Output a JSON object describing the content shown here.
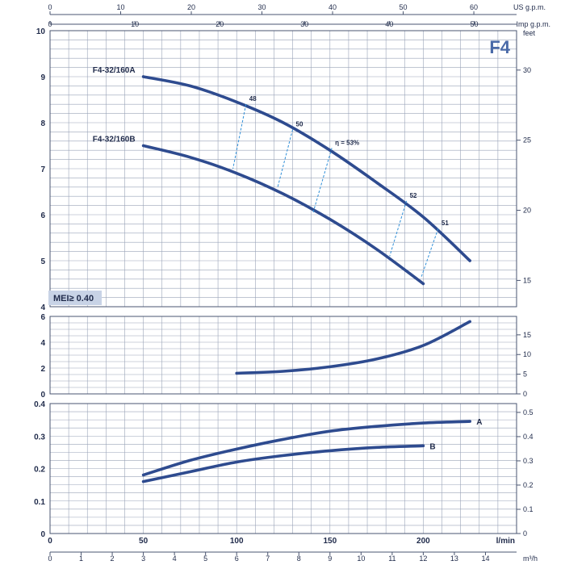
{
  "model_tag": "F4",
  "mei_label": "MEI≥ 0.40",
  "chart_data": [
    {
      "type": "line",
      "id": "head",
      "ylim": [
        4,
        10
      ],
      "yticks": [
        4,
        5,
        6,
        7,
        8,
        9,
        10
      ],
      "right_axis": {
        "unit": "feet",
        "ticks": [
          15,
          20,
          25,
          30
        ]
      },
      "x_unit": "l/min",
      "series": [
        {
          "name": "F4-32/160A",
          "x": [
            50,
            75,
            100,
            125,
            150,
            175,
            200,
            225
          ],
          "y": [
            9.0,
            8.8,
            8.45,
            8.0,
            7.4,
            6.7,
            5.95,
            5.0
          ]
        },
        {
          "name": "F4-32/160B",
          "x": [
            50,
            75,
            100,
            125,
            150,
            175,
            200
          ],
          "y": [
            7.5,
            7.25,
            6.9,
            6.45,
            5.9,
            5.25,
            4.5
          ]
        }
      ],
      "efficiency_lines": [
        {
          "label": "48",
          "top": [
            105,
            8.4
          ],
          "bottom": [
            98,
            7.0
          ]
        },
        {
          "label": "50",
          "top": [
            130,
            7.85
          ],
          "bottom": [
            122,
            6.6
          ]
        },
        {
          "label": "η = 53%",
          "top": [
            151,
            7.45
          ],
          "bottom": [
            141,
            6.05
          ]
        },
        {
          "label": "52",
          "top": [
            191,
            6.3
          ],
          "bottom": [
            182,
            5.1
          ]
        },
        {
          "label": "51",
          "top": [
            208,
            5.7
          ],
          "bottom": [
            199,
            4.65
          ]
        }
      ]
    },
    {
      "type": "line",
      "id": "npsh",
      "ylim": [
        0,
        6
      ],
      "yticks": [
        0,
        2,
        4,
        6
      ],
      "right_axis": {
        "ticks": [
          0,
          5,
          10,
          15
        ]
      },
      "series": [
        {
          "name": "",
          "x": [
            100,
            125,
            150,
            175,
            200,
            225
          ],
          "y": [
            1.6,
            1.75,
            2.1,
            2.7,
            3.75,
            5.6
          ]
        }
      ]
    },
    {
      "type": "line",
      "id": "power",
      "ylim": [
        0,
        0.4
      ],
      "yticks": [
        0,
        0.1,
        0.2,
        0.3,
        0.4
      ],
      "right_axis": {
        "ticks": [
          0,
          0.1,
          0.2,
          0.3,
          0.4,
          0.5
        ]
      },
      "series": [
        {
          "name": "A",
          "x": [
            50,
            75,
            100,
            125,
            150,
            175,
            200,
            225
          ],
          "y": [
            0.18,
            0.225,
            0.26,
            0.29,
            0.315,
            0.33,
            0.34,
            0.345
          ]
        },
        {
          "name": "B",
          "x": [
            50,
            75,
            100,
            125,
            150,
            175,
            200
          ],
          "y": [
            0.16,
            0.19,
            0.22,
            0.24,
            0.255,
            0.265,
            0.27
          ]
        }
      ]
    }
  ],
  "axes": {
    "lpm_ticks": [
      0,
      50,
      100,
      150,
      200
    ],
    "lpm_unit": "l/min",
    "m3h_ticks": [
      0,
      1,
      2,
      3,
      4,
      5,
      6,
      7,
      8,
      9,
      10,
      11,
      12,
      13,
      14
    ],
    "m3h_unit": "m³/h",
    "usgpm_ticks": [
      0,
      10,
      20,
      30,
      40,
      50,
      60
    ],
    "usgpm_unit": "US g.p.m.",
    "impgpm_ticks": [
      0,
      10,
      20,
      30,
      40,
      50
    ],
    "impgpm_unit": "Imp g.p.m."
  }
}
